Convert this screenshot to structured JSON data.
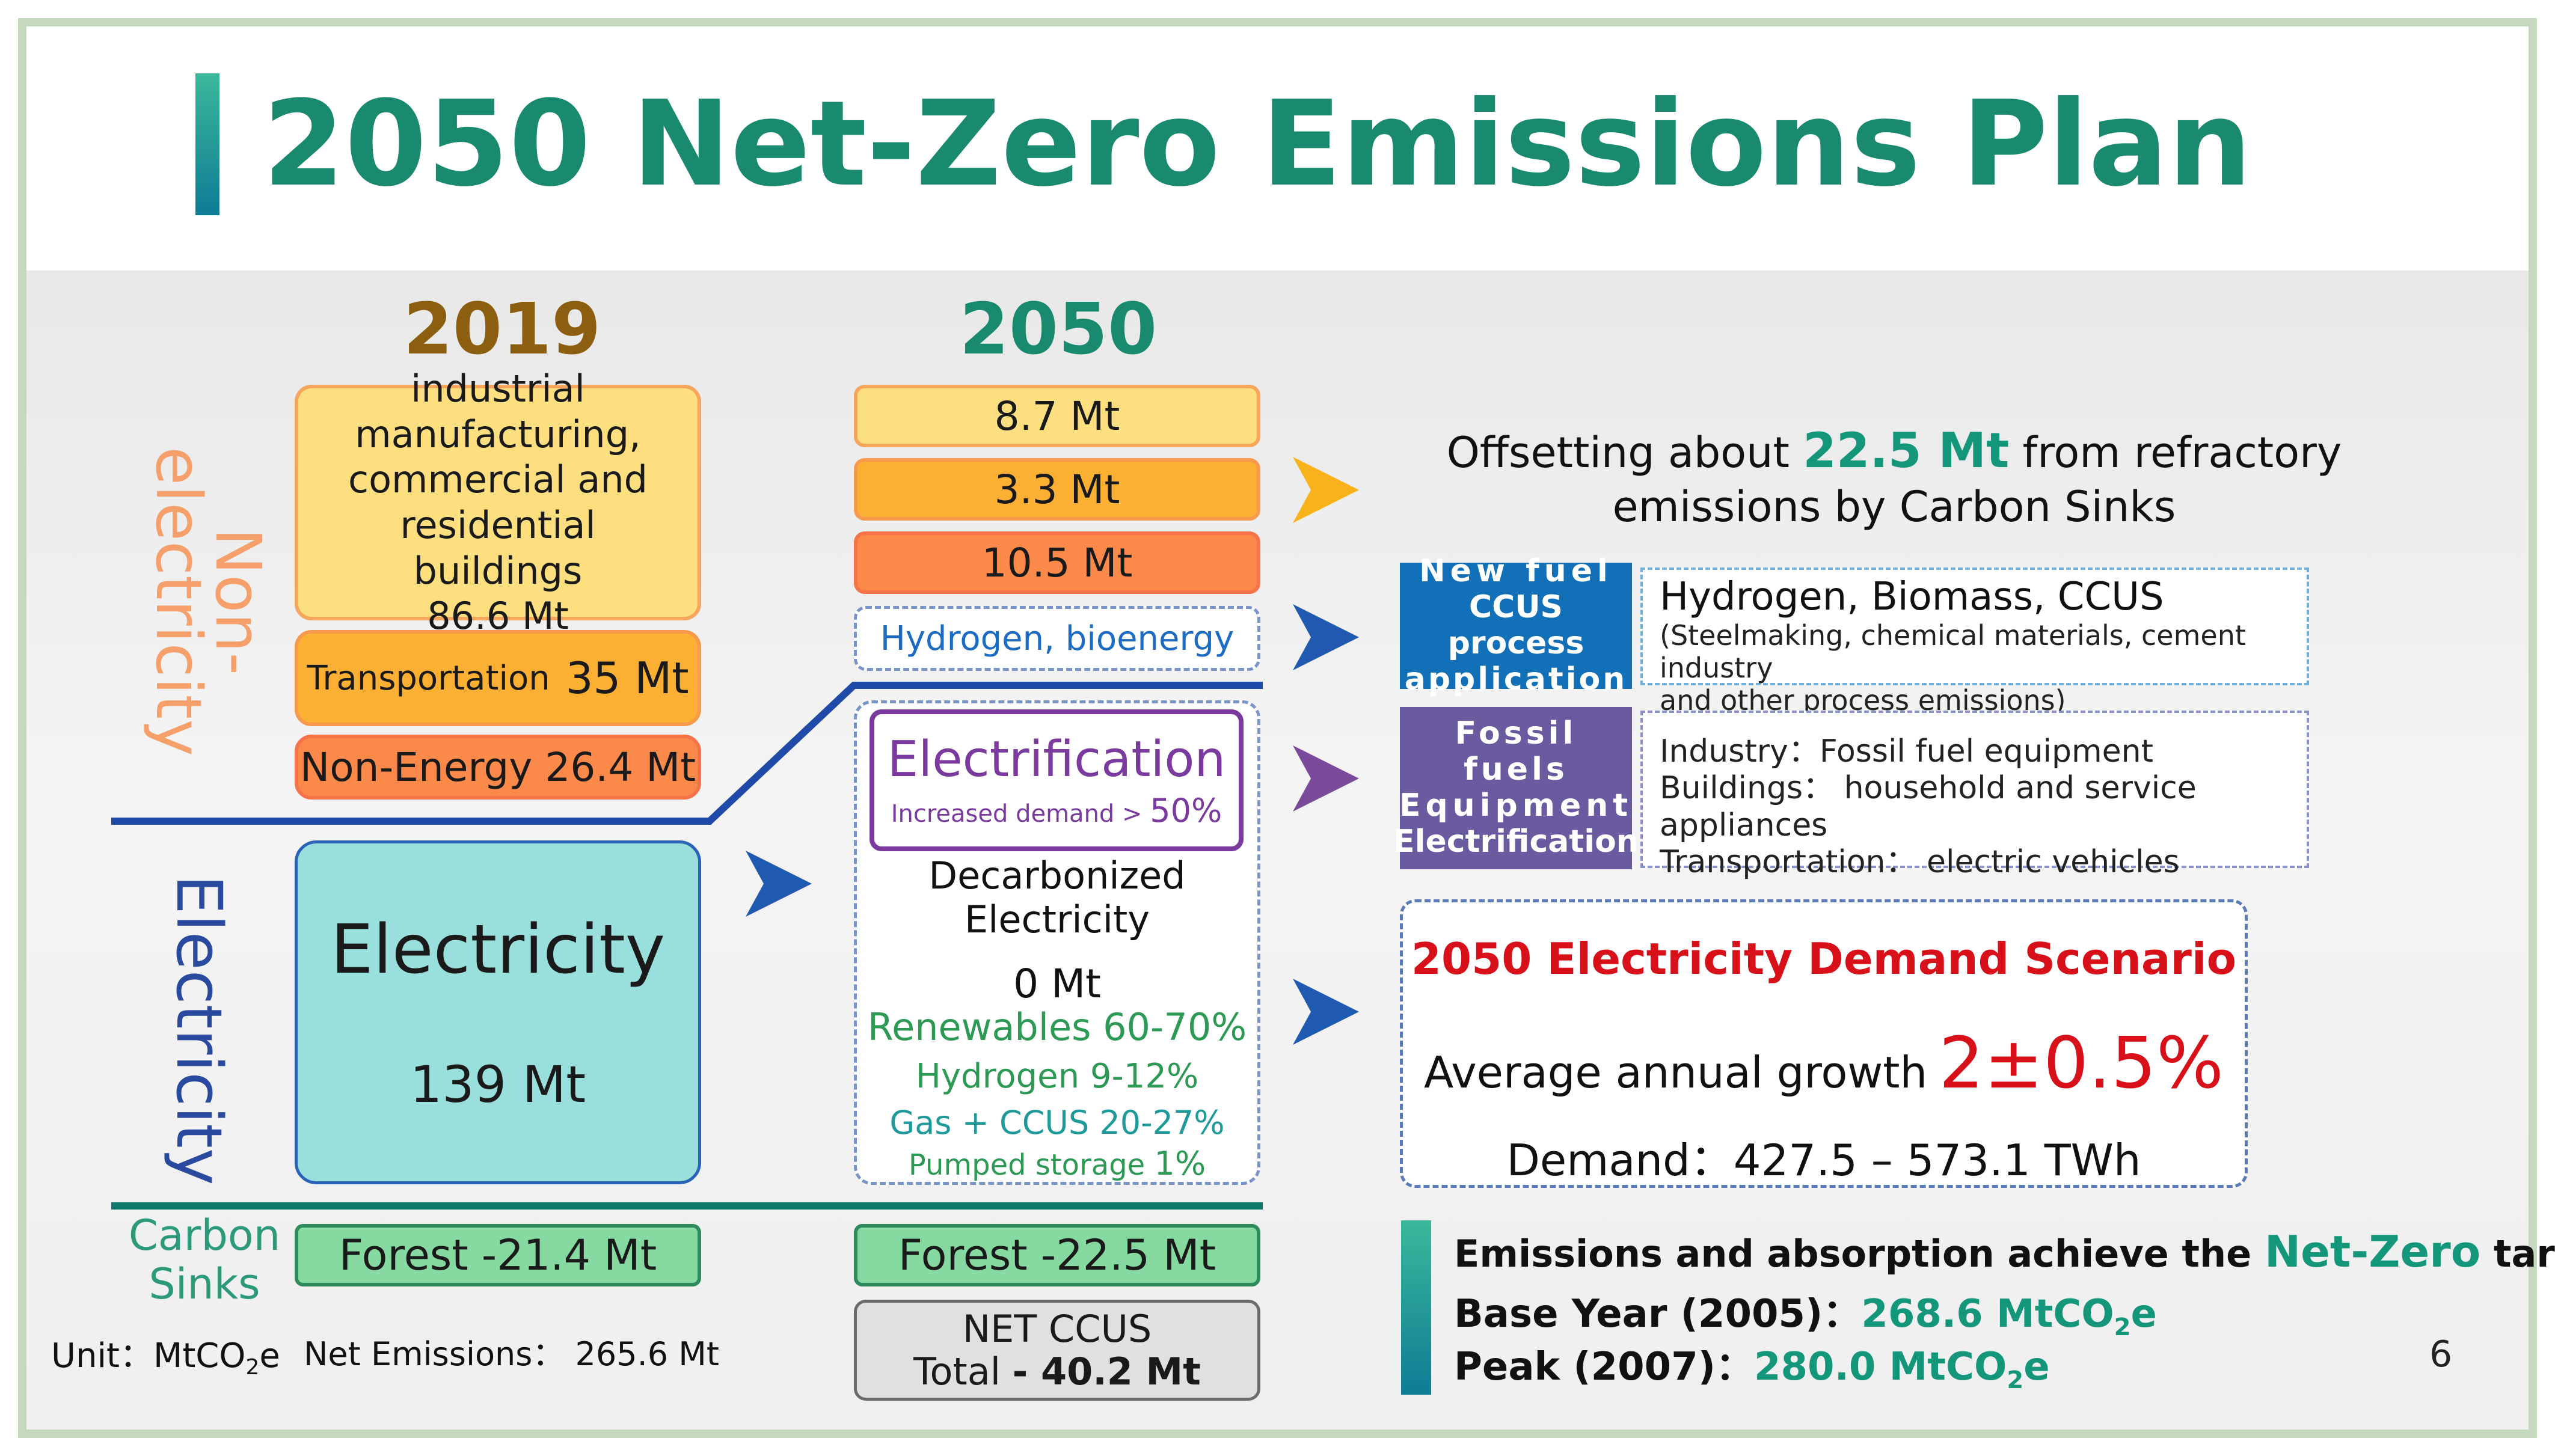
{
  "title": "2050 Net-Zero Emissions Plan",
  "colors": {
    "title": "#1a8a6e",
    "year2019": "#8b5e10",
    "year2050": "#1a8a6e",
    "electrification": "#7a3a9e",
    "nonelec_label": "#f5a06a",
    "elec_label": "#2a4aa0"
  },
  "years": {
    "y2019": "2019",
    "y2050": "2050"
  },
  "labels": {
    "non_electricity": "Non-electricity",
    "electricity": "Electricity",
    "carbon_sinks": "Carbon Sinks"
  },
  "col2019": {
    "industrial": "industrial manufacturing, commercial and residential buildings",
    "industrial_value": "86.6 Mt",
    "transportation": "Transportation",
    "transportation_value": "35 Mt",
    "non_energy": "Non-Energy 26.4 Mt",
    "electricity_title": "Electricity",
    "electricity_value": "139 Mt",
    "forest": "Forest -21.4 Mt"
  },
  "col2050": {
    "v1": "8.7 Mt",
    "v2": "3.3 Mt",
    "v3": "10.5 Mt",
    "hydrogen": "Hydrogen, bioenergy",
    "electrification": "Electrification",
    "increased_demand": "Increased demand >",
    "increased_pct": "50%",
    "decarbonized": "Decarbonized Electricity",
    "zero": "0 Mt",
    "renewables": "Renewables 60-70%",
    "hydrogen_pct": "Hydrogen 9-12%",
    "gas_ccus": "Gas + CCUS  20-27%",
    "pumped": "Pumped storage",
    "pumped_pct": "1%",
    "forest": "Forest -22.5 Mt",
    "net_ccus": "NET CCUS",
    "total_label": "Total",
    "total_value": "- 40.2 Mt"
  },
  "unit": {
    "label": "Unit：MtCO",
    "sub": "2",
    "suffix": "e"
  },
  "net_emissions": "Net Emissions： 265.6 Mt",
  "offset": {
    "pre": "Offsetting about",
    "value": "22.5 Mt",
    "post": "from refractory",
    "line2": "emissions by Carbon Sinks"
  },
  "new_fuel": {
    "block": [
      "New  fuel",
      "CCUS process",
      "application"
    ],
    "heading": "Hydrogen, Biomass, CCUS",
    "detail1": "(Steelmaking, chemical materials, cement industry",
    "detail2": "and other process emissions)"
  },
  "fossil": {
    "block": [
      "Fossil  fuels",
      "Equipment",
      "Electrification"
    ],
    "line1": "Industry：Fossil fuel equipment",
    "line2": "Buildings： household and service appliances",
    "line3": "Transportation： electric vehicles"
  },
  "scenario": {
    "title": "2050 Electricity Demand Scenario",
    "growth_label": "Average annual growth",
    "growth_value": "2±0.5%",
    "demand": "Demand：427.5 – 573.1 TWh"
  },
  "netzero": {
    "line_pre": "Emissions and absorption achieve the",
    "line_hl": "Net-Zero",
    "line_post": "target",
    "base_label": "Base Year (2005)：",
    "base_value": "268.6 MtCO",
    "peak_label": "Peak (2007)：",
    "peak_value": "280.0 MtCO",
    "sub": "2",
    "suffix": "e"
  },
  "page_number": "6"
}
